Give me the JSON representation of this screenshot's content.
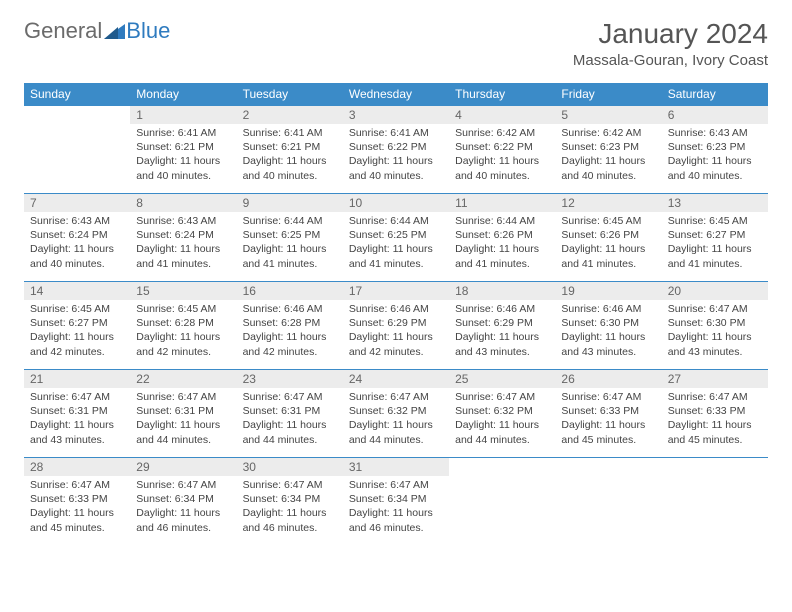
{
  "brand": {
    "word1": "General",
    "word2": "Blue"
  },
  "title": "January 2024",
  "location": "Massala-Gouran, Ivory Coast",
  "colors": {
    "header_bg": "#3b8bc8",
    "header_fg": "#ffffff",
    "daynum_bg": "#ececec",
    "rule": "#3b8bc8",
    "logo_gray": "#6b6b6b",
    "logo_blue": "#2f7bbf"
  },
  "weekdays": [
    "Sunday",
    "Monday",
    "Tuesday",
    "Wednesday",
    "Thursday",
    "Friday",
    "Saturday"
  ],
  "weeks": [
    [
      {
        "n": "",
        "sr": "",
        "ss": "",
        "dl": ""
      },
      {
        "n": "1",
        "sr": "6:41 AM",
        "ss": "6:21 PM",
        "dl": "11 hours and 40 minutes."
      },
      {
        "n": "2",
        "sr": "6:41 AM",
        "ss": "6:21 PM",
        "dl": "11 hours and 40 minutes."
      },
      {
        "n": "3",
        "sr": "6:41 AM",
        "ss": "6:22 PM",
        "dl": "11 hours and 40 minutes."
      },
      {
        "n": "4",
        "sr": "6:42 AM",
        "ss": "6:22 PM",
        "dl": "11 hours and 40 minutes."
      },
      {
        "n": "5",
        "sr": "6:42 AM",
        "ss": "6:23 PM",
        "dl": "11 hours and 40 minutes."
      },
      {
        "n": "6",
        "sr": "6:43 AM",
        "ss": "6:23 PM",
        "dl": "11 hours and 40 minutes."
      }
    ],
    [
      {
        "n": "7",
        "sr": "6:43 AM",
        "ss": "6:24 PM",
        "dl": "11 hours and 40 minutes."
      },
      {
        "n": "8",
        "sr": "6:43 AM",
        "ss": "6:24 PM",
        "dl": "11 hours and 41 minutes."
      },
      {
        "n": "9",
        "sr": "6:44 AM",
        "ss": "6:25 PM",
        "dl": "11 hours and 41 minutes."
      },
      {
        "n": "10",
        "sr": "6:44 AM",
        "ss": "6:25 PM",
        "dl": "11 hours and 41 minutes."
      },
      {
        "n": "11",
        "sr": "6:44 AM",
        "ss": "6:26 PM",
        "dl": "11 hours and 41 minutes."
      },
      {
        "n": "12",
        "sr": "6:45 AM",
        "ss": "6:26 PM",
        "dl": "11 hours and 41 minutes."
      },
      {
        "n": "13",
        "sr": "6:45 AM",
        "ss": "6:27 PM",
        "dl": "11 hours and 41 minutes."
      }
    ],
    [
      {
        "n": "14",
        "sr": "6:45 AM",
        "ss": "6:27 PM",
        "dl": "11 hours and 42 minutes."
      },
      {
        "n": "15",
        "sr": "6:45 AM",
        "ss": "6:28 PM",
        "dl": "11 hours and 42 minutes."
      },
      {
        "n": "16",
        "sr": "6:46 AM",
        "ss": "6:28 PM",
        "dl": "11 hours and 42 minutes."
      },
      {
        "n": "17",
        "sr": "6:46 AM",
        "ss": "6:29 PM",
        "dl": "11 hours and 42 minutes."
      },
      {
        "n": "18",
        "sr": "6:46 AM",
        "ss": "6:29 PM",
        "dl": "11 hours and 43 minutes."
      },
      {
        "n": "19",
        "sr": "6:46 AM",
        "ss": "6:30 PM",
        "dl": "11 hours and 43 minutes."
      },
      {
        "n": "20",
        "sr": "6:47 AM",
        "ss": "6:30 PM",
        "dl": "11 hours and 43 minutes."
      }
    ],
    [
      {
        "n": "21",
        "sr": "6:47 AM",
        "ss": "6:31 PM",
        "dl": "11 hours and 43 minutes."
      },
      {
        "n": "22",
        "sr": "6:47 AM",
        "ss": "6:31 PM",
        "dl": "11 hours and 44 minutes."
      },
      {
        "n": "23",
        "sr": "6:47 AM",
        "ss": "6:31 PM",
        "dl": "11 hours and 44 minutes."
      },
      {
        "n": "24",
        "sr": "6:47 AM",
        "ss": "6:32 PM",
        "dl": "11 hours and 44 minutes."
      },
      {
        "n": "25",
        "sr": "6:47 AM",
        "ss": "6:32 PM",
        "dl": "11 hours and 44 minutes."
      },
      {
        "n": "26",
        "sr": "6:47 AM",
        "ss": "6:33 PM",
        "dl": "11 hours and 45 minutes."
      },
      {
        "n": "27",
        "sr": "6:47 AM",
        "ss": "6:33 PM",
        "dl": "11 hours and 45 minutes."
      }
    ],
    [
      {
        "n": "28",
        "sr": "6:47 AM",
        "ss": "6:33 PM",
        "dl": "11 hours and 45 minutes."
      },
      {
        "n": "29",
        "sr": "6:47 AM",
        "ss": "6:34 PM",
        "dl": "11 hours and 46 minutes."
      },
      {
        "n": "30",
        "sr": "6:47 AM",
        "ss": "6:34 PM",
        "dl": "11 hours and 46 minutes."
      },
      {
        "n": "31",
        "sr": "6:47 AM",
        "ss": "6:34 PM",
        "dl": "11 hours and 46 minutes."
      },
      {
        "n": "",
        "sr": "",
        "ss": "",
        "dl": ""
      },
      {
        "n": "",
        "sr": "",
        "ss": "",
        "dl": ""
      },
      {
        "n": "",
        "sr": "",
        "ss": "",
        "dl": ""
      }
    ]
  ],
  "labels": {
    "sunrise": "Sunrise: ",
    "sunset": "Sunset: ",
    "daylight": "Daylight: "
  }
}
